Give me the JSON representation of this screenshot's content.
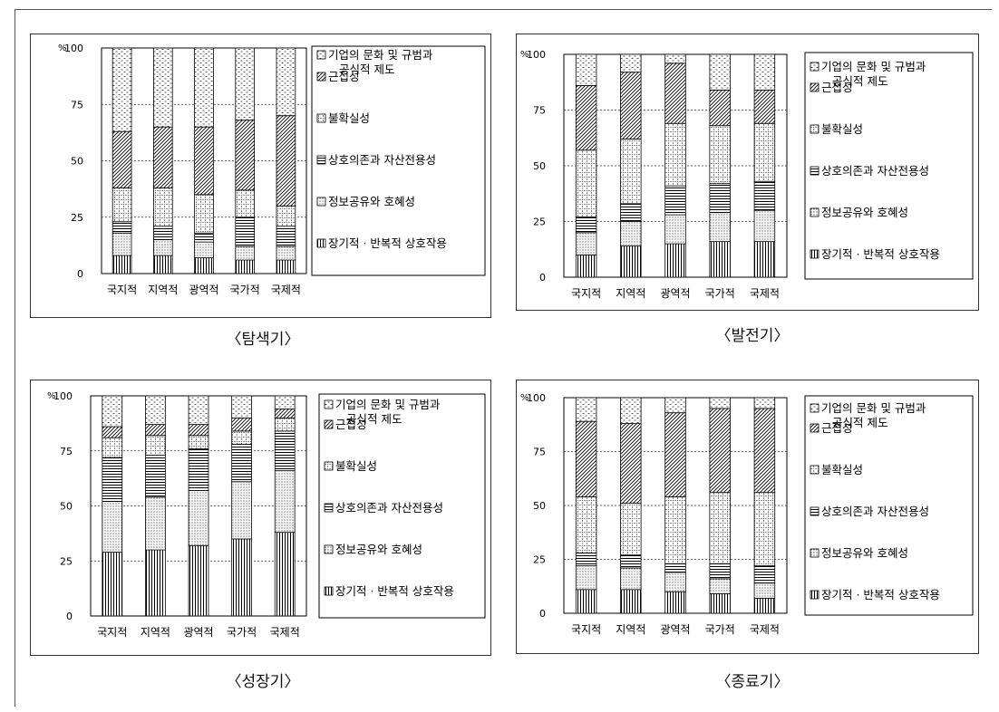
{
  "legend_labels": [
    "기업의 문화 및 규범과 공식적 제도",
    "근접성",
    "불확실성",
    "상호의존과 자산전용성",
    "정보공유와 호혜성",
    "장기적 · 반복적 상호작용"
  ],
  "legend_line1": "기업의 문화 및 규범과",
  "legend_line2": "공식적 제도",
  "percent_symbol": "%",
  "chart_data": [
    {
      "type": "bar",
      "stacked": true,
      "title": "〈탐색기〉",
      "ylim": [
        0,
        100
      ],
      "yticks": [
        0,
        25,
        50,
        75,
        100
      ],
      "categories": [
        "국지적",
        "지역적",
        "광역적",
        "국가적",
        "국제적"
      ],
      "series": [
        {
          "name": "장기적 · 반복적 상호작용",
          "values": [
            8,
            8,
            7,
            6,
            6
          ]
        },
        {
          "name": "정보공유와 호혜성",
          "values": [
            10,
            7,
            7,
            6,
            6
          ]
        },
        {
          "name": "상호의존과 자산전용성",
          "values": [
            5,
            6,
            4,
            13,
            9
          ]
        },
        {
          "name": "불확실성",
          "values": [
            15,
            17,
            17,
            12,
            9
          ]
        },
        {
          "name": "근접성",
          "values": [
            25,
            27,
            30,
            31,
            40
          ]
        },
        {
          "name": "기업의 문화 및 규범과 공식적 제도",
          "values": [
            37,
            35,
            35,
            32,
            30
          ]
        }
      ]
    },
    {
      "type": "bar",
      "stacked": true,
      "title": "〈발전기〉",
      "ylim": [
        0,
        100
      ],
      "yticks": [
        0,
        25,
        50,
        75,
        100
      ],
      "categories": [
        "국지적",
        "지역적",
        "광역적",
        "국가적",
        "국제적"
      ],
      "series": [
        {
          "name": "장기적 · 반복적 상호작용",
          "values": [
            10,
            14,
            15,
            16,
            16
          ]
        },
        {
          "name": "정보공유와 호혜성",
          "values": [
            10,
            11,
            13,
            13,
            14
          ]
        },
        {
          "name": "상호의존과 자산전용성",
          "values": [
            7,
            8,
            13,
            13,
            13
          ]
        },
        {
          "name": "불확실성",
          "values": [
            30,
            29,
            28,
            26,
            26
          ]
        },
        {
          "name": "근접성",
          "values": [
            29,
            30,
            27,
            16,
            15
          ]
        },
        {
          "name": "기업의 문화 및 규범과 공식적 제도",
          "values": [
            14,
            8,
            4,
            16,
            16
          ]
        }
      ]
    },
    {
      "type": "bar",
      "stacked": true,
      "title": "〈성장기〉",
      "ylim": [
        0,
        100
      ],
      "yticks": [
        0,
        25,
        50,
        75,
        100
      ],
      "categories": [
        "국지적",
        "지역적",
        "광역적",
        "국가적",
        "국제적"
      ],
      "series": [
        {
          "name": "장기적 · 반복적 상호작용",
          "values": [
            29,
            30,
            32,
            35,
            38
          ]
        },
        {
          "name": "정보공유와 호혜성",
          "values": [
            23,
            24,
            25,
            26,
            28
          ]
        },
        {
          "name": "상호의존과 자산전용성",
          "values": [
            20,
            19,
            19,
            17,
            18
          ]
        },
        {
          "name": "불확실성",
          "values": [
            9,
            9,
            6,
            6,
            6
          ]
        },
        {
          "name": "근접성",
          "values": [
            5,
            5,
            5,
            6,
            4
          ]
        },
        {
          "name": "기업의 문화 및 규범과 공식적 제도",
          "values": [
            14,
            13,
            13,
            10,
            6
          ]
        }
      ]
    },
    {
      "type": "bar",
      "stacked": true,
      "title": "〈종료기〉",
      "ylim": [
        0,
        100
      ],
      "yticks": [
        0,
        25,
        50,
        75,
        100
      ],
      "categories": [
        "국지적",
        "지역적",
        "광역적",
        "국가적",
        "국제적"
      ],
      "series": [
        {
          "name": "장기적 · 반복적 상호작용",
          "values": [
            11,
            11,
            10,
            9,
            7
          ]
        },
        {
          "name": "정보공유와 호혜성",
          "values": [
            11,
            10,
            9,
            7,
            7
          ]
        },
        {
          "name": "상호의존과 자산전용성",
          "values": [
            6,
            6,
            4,
            7,
            8
          ]
        },
        {
          "name": "불확실성",
          "values": [
            26,
            24,
            31,
            33,
            34
          ]
        },
        {
          "name": "근접성",
          "values": [
            35,
            37,
            39,
            39,
            39
          ]
        },
        {
          "name": "기업의 문화 및 규범과 공식적 제도",
          "values": [
            11,
            12,
            7,
            5,
            5
          ]
        }
      ]
    }
  ]
}
